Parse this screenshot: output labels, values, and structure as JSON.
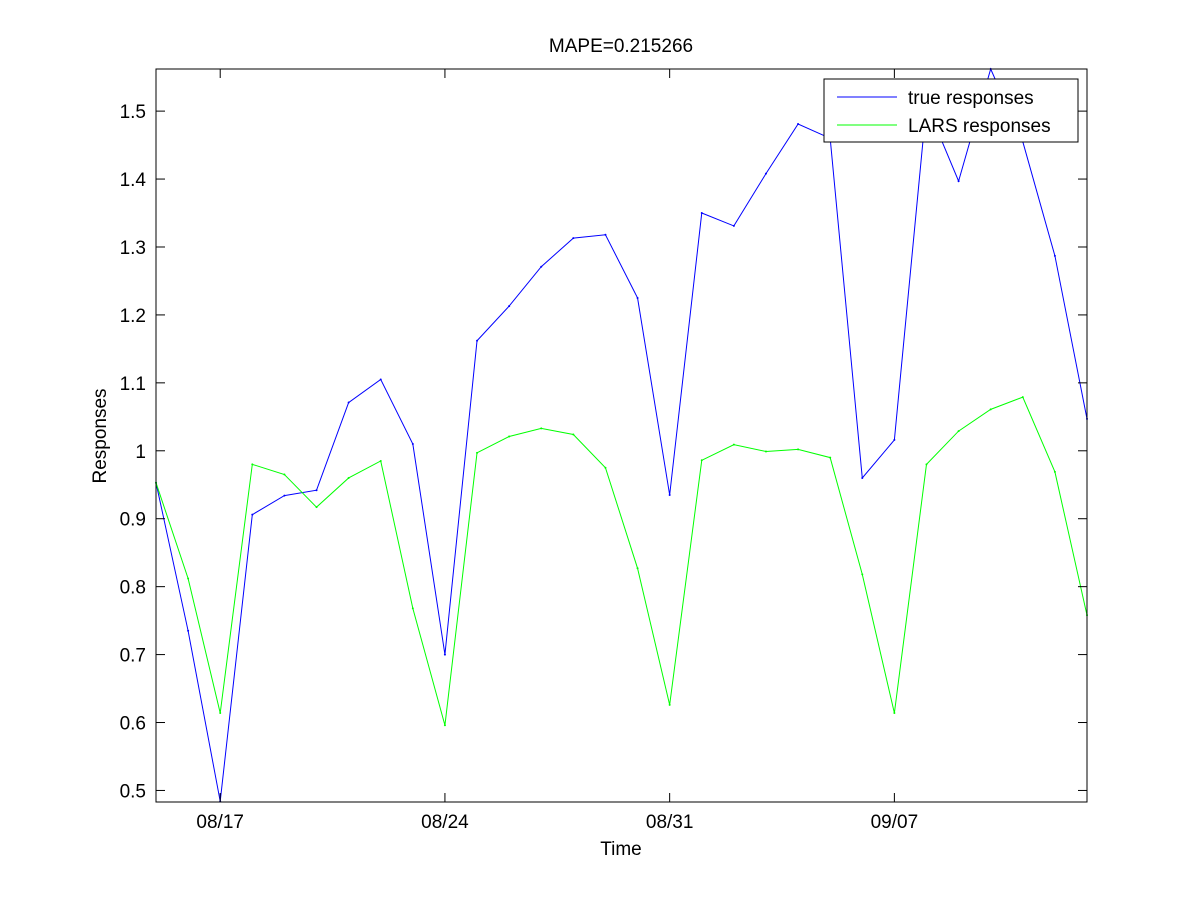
{
  "chart_data": {
    "type": "line",
    "title": "MAPE=0.215266",
    "xlabel": "Time",
    "ylabel": "Responses",
    "x": [
      "08/15",
      "08/16",
      "08/17",
      "08/18",
      "08/19",
      "08/20",
      "08/21",
      "08/22",
      "08/23",
      "08/24",
      "08/25",
      "08/26",
      "08/27",
      "08/28",
      "08/29",
      "08/30",
      "08/31",
      "09/01",
      "09/02",
      "09/03",
      "09/04",
      "09/05",
      "09/06",
      "09/07",
      "09/08",
      "09/09",
      "09/10",
      "09/11",
      "09/12",
      "09/13"
    ],
    "xlim": [
      "08/15",
      "09/13"
    ],
    "xticks": [
      "08/17",
      "08/24",
      "08/31",
      "09/07"
    ],
    "ylim": [
      0.483,
      1.562
    ],
    "yticks": [
      0.5,
      0.6,
      0.7,
      0.8,
      0.9,
      1,
      1.1,
      1.2,
      1.3,
      1.4,
      1.5
    ],
    "ytick_labels": [
      "0.5",
      "0.6",
      "0.7",
      "0.8",
      "0.9",
      "1",
      "1.1",
      "1.2",
      "1.3",
      "1.4",
      "1.5"
    ],
    "grid": false,
    "legend_position": "top-right",
    "series": [
      {
        "name": "true responses",
        "color": "#0000ff",
        "values": [
          0.953,
          0.735,
          0.484,
          0.906,
          0.934,
          0.942,
          1.071,
          1.105,
          1.01,
          0.7,
          1.162,
          1.213,
          1.271,
          1.313,
          1.318,
          1.225,
          0.935,
          1.35,
          1.331,
          1.408,
          1.481,
          1.46,
          0.96,
          1.016,
          1.51,
          1.397,
          1.562,
          1.455,
          1.287,
          1.047
        ]
      },
      {
        "name": "LARS responses",
        "color": "#00ff00",
        "values": [
          0.953,
          0.812,
          0.614,
          0.98,
          0.965,
          0.917,
          0.96,
          0.985,
          0.768,
          0.596,
          0.997,
          1.021,
          1.033,
          1.024,
          0.975,
          0.827,
          0.626,
          0.986,
          1.009,
          0.999,
          1.002,
          0.99,
          0.818,
          0.614,
          0.98,
          1.029,
          1.061,
          1.079,
          0.969,
          0.758
        ]
      }
    ]
  }
}
